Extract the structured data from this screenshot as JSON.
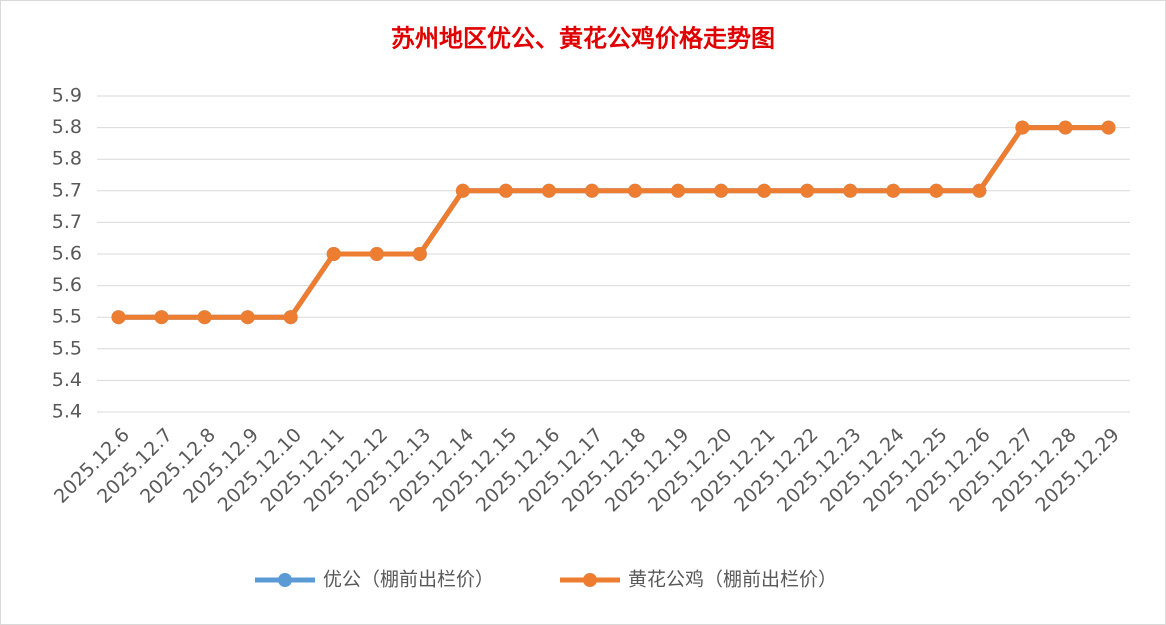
{
  "chart_data": {
    "type": "line",
    "title": "苏州地区优公、黄花公鸡价格走势图",
    "categories": [
      "2025.12.6",
      "2025.12.7",
      "2025.12.8",
      "2025.12.9",
      "2025.12.10",
      "2025.12.11",
      "2025.12.12",
      "2025.12.13",
      "2025.12.14",
      "2025.12.15",
      "2025.12.16",
      "2025.12.17",
      "2025.12.18",
      "2025.12.19",
      "2025.12.20",
      "2025.12.21",
      "2025.12.22",
      "2025.12.23",
      "2025.12.24",
      "2025.12.25",
      "2025.12.26",
      "2025.12.27",
      "2025.12.28",
      "2025.12.29"
    ],
    "series": [
      {
        "name": "优公（棚前出栏价）",
        "color": "#5b9bd5",
        "values": [
          5.5,
          5.5,
          5.5,
          5.5,
          5.5,
          5.6,
          5.6,
          5.6,
          5.7,
          5.7,
          5.7,
          5.7,
          5.7,
          5.7,
          5.7,
          5.7,
          5.7,
          5.7,
          5.7,
          5.7,
          5.7,
          5.8,
          5.8,
          5.8
        ]
      },
      {
        "name": "黄花公鸡（棚前出栏价）",
        "color": "#ed7d31",
        "values": [
          5.5,
          5.5,
          5.5,
          5.5,
          5.5,
          5.6,
          5.6,
          5.6,
          5.7,
          5.7,
          5.7,
          5.7,
          5.7,
          5.7,
          5.7,
          5.7,
          5.7,
          5.7,
          5.7,
          5.7,
          5.7,
          5.8,
          5.8,
          5.8
        ]
      }
    ],
    "ylim": [
      5.35,
      5.85
    ],
    "yticks": [
      {
        "value": 5.35,
        "label": "5.4"
      },
      5.4,
      {
        "value": 5.45,
        "label": "5.5"
      },
      5.5,
      {
        "value": 5.55,
        "label": "5.6"
      },
      5.6,
      {
        "value": 5.65,
        "label": "5.7"
      },
      5.7,
      {
        "value": 5.75,
        "label": "5.8"
      },
      5.8,
      {
        "value": 5.85,
        "label": "5.9"
      }
    ],
    "grid": true,
    "legend": "bottom"
  }
}
